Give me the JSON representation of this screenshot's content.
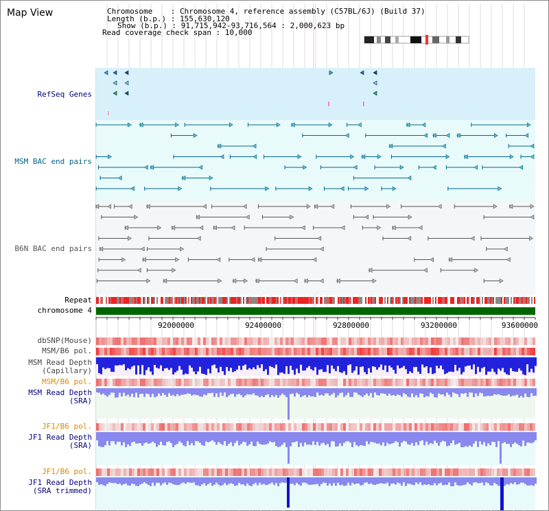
{
  "view_title": "Map View",
  "info": {
    "line1": "Chromosome    : Chromosome 4, reference assembly (C57BL/6J) (Build 37)",
    "line2": "Length (b.p.) : 155,630,120",
    "line3": "Show (b.p.) : 91,715,942-93,716,564 : 2,000,623 bp",
    "line4": "Read coverage check span : 10,000"
  },
  "track_labels": {
    "refseq": "RefSeq Genes",
    "msm_bac": "MSM BAC end pairs",
    "b6n_bac": "B6N BAC end pairs",
    "repeat": "Repeat",
    "chromosome": "chromosome 4",
    "dbsnp": "dbSNP(Mouse)",
    "msm_b6_pol_1": "MSM/B6 pol.",
    "msm_depth_cap_1": "MSM Read Depth",
    "msm_depth_cap_2": "(Capillary)",
    "msm_b6_pol_2": "MSM/B6 pol.",
    "msm_depth_sra_1": "MSM Read Depth",
    "msm_depth_sra_2": "(SRA)",
    "jf1_pol_1": "JF1/B6 pol.",
    "jf1_depth_1": "JF1 Read Depth",
    "jf1_depth_2": "(SRA)",
    "jf1_pol_2": "JF1/B6 pol.",
    "jf1_trim_1": "JF1 Read Depth",
    "jf1_trim_2": "(SRA trimmed)"
  },
  "axis_ticks": [
    "92000000",
    "92400000",
    "92800000",
    "93200000",
    "93600000"
  ],
  "colors": {
    "refseq_bg": "#d8f0fa",
    "msm_bac_bg": "#e8fafa",
    "b6n_bac_bg": "#f4f6f8",
    "msm_color": "#006688",
    "b6n_color": "#555555",
    "label_blue": "#000080",
    "label_teal": "#006688",
    "label_orange": "#dd8800",
    "chromosome_green": "#006600",
    "depth_blue": "#2222dd",
    "depth_light_blue": "#8888ee"
  },
  "icons": {
    "ideogram": "chromosome-ideogram-icon",
    "gene_arrow": "gene-direction-icon"
  }
}
